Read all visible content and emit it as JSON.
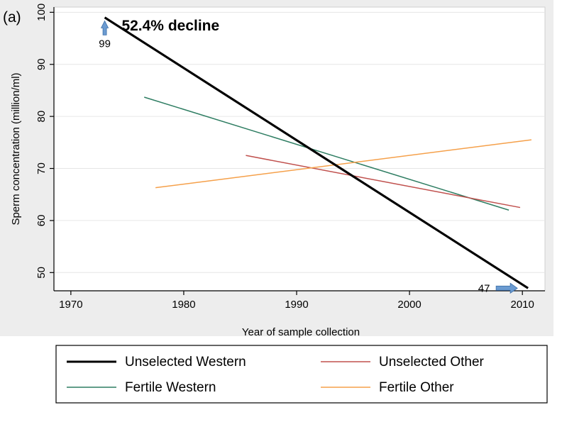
{
  "panel_label": "(a)",
  "chart_data": {
    "type": "line",
    "title": "",
    "xlabel": "Year of sample collection",
    "ylabel": "Sperm concentration (million/ml)",
    "xlim": [
      1968.5,
      2012
    ],
    "ylim": [
      46.5,
      101
    ],
    "xticks": [
      1970,
      1980,
      1990,
      2000,
      2010
    ],
    "yticks": [
      50,
      60,
      70,
      80,
      90,
      100
    ],
    "grid": "horizontal",
    "legend_placement": "bottom",
    "series": [
      {
        "name": "Unselected Western",
        "color": "#000000",
        "width": "heavy",
        "x": [
          1973,
          2010.5
        ],
        "y": [
          99,
          47
        ]
      },
      {
        "name": "Unselected Other",
        "color": "#c0504d",
        "width": "thin",
        "x": [
          1985.5,
          2009.8
        ],
        "y": [
          72.5,
          62.5
        ]
      },
      {
        "name": "Fertile Western",
        "color": "#2e7d62",
        "width": "thin",
        "x": [
          1976.5,
          2008.8
        ],
        "y": [
          83.7,
          62.0
        ]
      },
      {
        "name": "Fertile Other",
        "color": "#f5a04a",
        "width": "thin",
        "x": [
          1977.5,
          2010.8
        ],
        "y": [
          66.3,
          75.5
        ]
      }
    ],
    "annotations": [
      {
        "text": "52.4% decline",
        "x": 1974.5,
        "y": 96.5,
        "style": "bold"
      },
      {
        "text": "99",
        "x": 1973,
        "y": 94,
        "marker": "arrow-up",
        "marker_color": "#6b9bd1"
      },
      {
        "text": "47",
        "x": 2008.3,
        "y": 47,
        "marker": "arrow-right",
        "marker_color": "#6b9bd1"
      }
    ]
  }
}
